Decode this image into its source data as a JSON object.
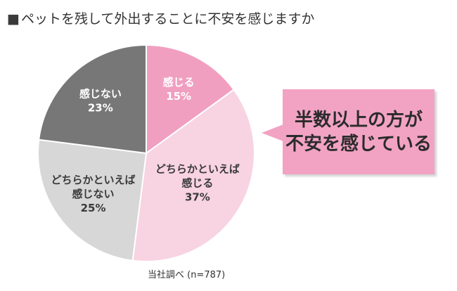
{
  "title": "ペットを残して外出することに不安を感じますか",
  "title_marker": "■",
  "source": "当社調べ (n=787)",
  "callout": {
    "lines": [
      "半数以上の方が",
      "不安を感じている"
    ],
    "color": "#f2a3c3"
  },
  "chart_data": {
    "type": "pie",
    "title": "ペットを残して外出することに不安を感じますか",
    "slices": [
      {
        "label_lines": [
          "感じる"
        ],
        "value": 15,
        "value_label": "15%",
        "color": "#f09fc0",
        "text_color": "#ffffff"
      },
      {
        "label_lines": [
          "どちらかといえば",
          "感じる"
        ],
        "value": 37,
        "value_label": "37%",
        "color": "#f8d3e2",
        "text_color": "#3a3a3a"
      },
      {
        "label_lines": [
          "どちらかといえば",
          "感じない"
        ],
        "value": 25,
        "value_label": "25%",
        "color": "#d7d7d7",
        "text_color": "#3a3a3a"
      },
      {
        "label_lines": [
          "感じない"
        ],
        "value": 23,
        "value_label": "23%",
        "color": "#777777",
        "text_color": "#ffffff"
      }
    ],
    "start": "top",
    "direction": "clockwise",
    "n": 787
  }
}
